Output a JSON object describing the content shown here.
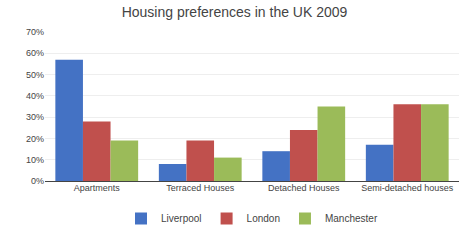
{
  "chart_data": {
    "type": "bar",
    "title": "Housing preferences in the UK 2009",
    "categories": [
      "Apartments",
      "Terraced Houses",
      "Detached Houses",
      "Semi-detached houses"
    ],
    "series": [
      {
        "name": "Liverpool",
        "color": "#4472C4",
        "values": [
          57,
          8,
          14,
          17
        ]
      },
      {
        "name": "London",
        "color": "#C0504D",
        "values": [
          28,
          19,
          24,
          36
        ]
      },
      {
        "name": "Manchester",
        "color": "#9BBB59",
        "values": [
          19,
          11,
          35,
          36
        ]
      }
    ],
    "ylim": [
      0,
      70
    ],
    "yticks": [
      {
        "value": 0,
        "label": "0%"
      },
      {
        "value": 10,
        "label": "10%"
      },
      {
        "value": 20,
        "label": "20%"
      },
      {
        "value": 30,
        "label": "30%"
      },
      {
        "value": 40,
        "label": "40%"
      },
      {
        "value": 50,
        "label": "50%"
      },
      {
        "value": 60,
        "label": "60%"
      },
      {
        "value": 70,
        "label": "70%"
      }
    ],
    "grid": true,
    "legend": "bottom"
  }
}
